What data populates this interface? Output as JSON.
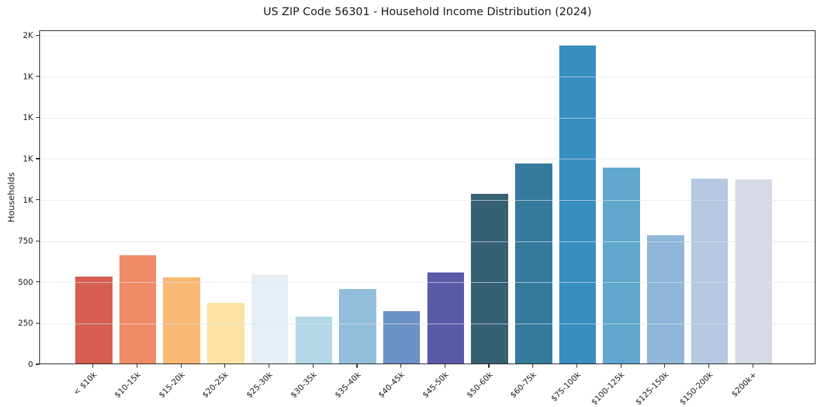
{
  "chart_data": {
    "type": "bar",
    "title": "US ZIP Code 56301 - Household Income Distribution (2024)",
    "xlabel": "",
    "ylabel": "Households",
    "categories": [
      "< $10k",
      "$10-15k",
      "$15-20k",
      "$20-25k",
      "$25-30k",
      "$30-35k",
      "$35-40k",
      "$40-45k",
      "$45-50k",
      "$50-60k",
      "$60-75k",
      "$75-100k",
      "$100-125k",
      "$125-150k",
      "$150-200k",
      "$200k+"
    ],
    "values": [
      530,
      660,
      525,
      370,
      540,
      285,
      455,
      320,
      555,
      1030,
      1215,
      1935,
      1190,
      780,
      1125,
      1120
    ],
    "bar_colors": [
      "#d65d52",
      "#f08b67",
      "#f9b873",
      "#fbe2a2",
      "#e6f0f4",
      "#b4d8e8",
      "#92bedb",
      "#6b92c5",
      "#5b5aa8",
      "#366073",
      "#357a9d",
      "#388dc1",
      "#5fa7cd",
      "#90b7d9",
      "#b5c8e1",
      "#d6d9e6"
    ],
    "ylim": [
      0,
      2030
    ],
    "yticks": [
      {
        "value": 0,
        "label": "0"
      },
      {
        "value": 250,
        "label": "250"
      },
      {
        "value": 500,
        "label": "500"
      },
      {
        "value": 750,
        "label": "750"
      },
      {
        "value": 1000,
        "label": "1K"
      },
      {
        "value": 1250,
        "label": "1K"
      },
      {
        "value": 1500,
        "label": "1K"
      },
      {
        "value": 1750,
        "label": "1K"
      },
      {
        "value": 2000,
        "label": "2K"
      }
    ],
    "grid": "horizontal",
    "legend": "none",
    "background": "#ffffff",
    "grid_color": "#e8eaee",
    "axis_color": "#1a1a1a",
    "text_color": "#1a1a1a",
    "xtick_rotation_deg": 45
  }
}
